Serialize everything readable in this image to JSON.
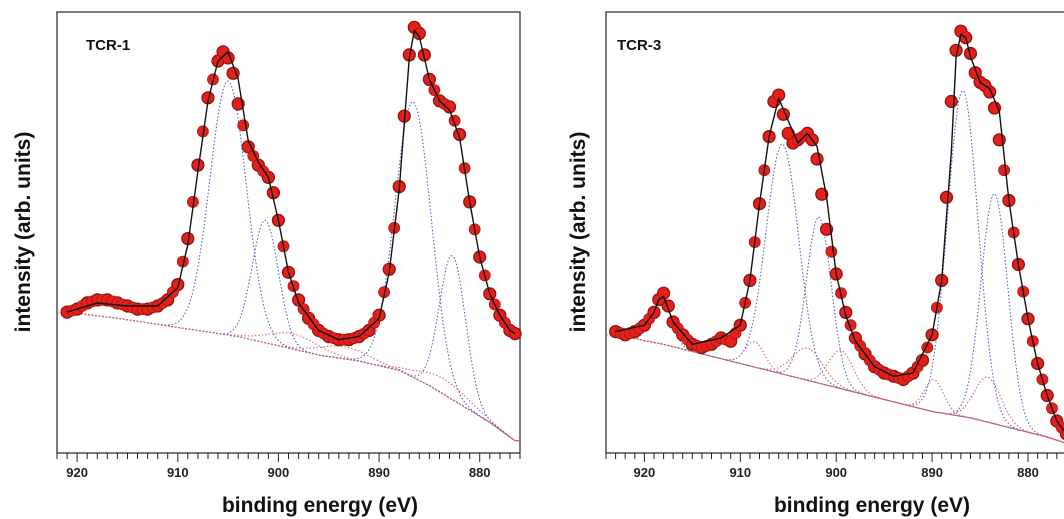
{
  "chart_data": [
    {
      "type": "line",
      "title": "TCR-1",
      "xlabel": "binding energy (eV)",
      "ylabel": "intensity (arb. units)",
      "xlim": [
        922,
        876
      ],
      "x_ticks": [
        920,
        910,
        900,
        890,
        880
      ],
      "series": [
        {
          "role": "measured",
          "style": "red-dots",
          "x": [
            921,
            920,
            919,
            918,
            917,
            916,
            915,
            914,
            913,
            912,
            911,
            910,
            909,
            908,
            907,
            906,
            905.5,
            905,
            904.5,
            904,
            903,
            902,
            901,
            900.5,
            900,
            899,
            898,
            897,
            896,
            895,
            894,
            893,
            892,
            891,
            890,
            889,
            888,
            887.5,
            887,
            886.5,
            886,
            885.5,
            885,
            884,
            883,
            882,
            881,
            880,
            879,
            878,
            877,
            876.5
          ],
          "y": [
            0.04,
            0.05,
            0.07,
            0.08,
            0.08,
            0.07,
            0.06,
            0.05,
            0.05,
            0.06,
            0.08,
            0.13,
            0.28,
            0.52,
            0.74,
            0.86,
            0.89,
            0.87,
            0.82,
            0.72,
            0.58,
            0.52,
            0.48,
            0.43,
            0.34,
            0.17,
            0.08,
            0.02,
            -0.02,
            -0.04,
            -0.05,
            -0.05,
            -0.04,
            -0.02,
            0.03,
            0.18,
            0.45,
            0.68,
            0.88,
            0.97,
            0.95,
            0.88,
            0.8,
            0.73,
            0.71,
            0.62,
            0.4,
            0.22,
            0.1,
            0.03,
            -0.02,
            -0.03
          ]
        },
        {
          "role": "fit-envelope",
          "style": "black-line",
          "x": [
            921,
            918,
            915,
            912,
            910,
            909,
            908,
            907,
            906,
            905,
            904,
            903,
            902,
            901,
            900,
            899,
            898,
            896,
            894,
            892,
            890,
            889,
            888,
            887,
            886.5,
            886,
            885,
            884,
            883,
            882,
            881,
            880,
            879,
            878,
            877,
            876.5
          ],
          "y": [
            0.04,
            0.07,
            0.06,
            0.06,
            0.12,
            0.26,
            0.5,
            0.73,
            0.86,
            0.89,
            0.8,
            0.6,
            0.53,
            0.48,
            0.34,
            0.17,
            0.07,
            -0.02,
            -0.05,
            -0.04,
            0.02,
            0.17,
            0.44,
            0.87,
            0.96,
            0.94,
            0.8,
            0.73,
            0.7,
            0.61,
            0.4,
            0.22,
            0.1,
            0.03,
            -0.02,
            -0.03
          ]
        },
        {
          "role": "component",
          "style": "blue-dotted",
          "center": 905.0,
          "height": 0.83,
          "width": 1.8
        },
        {
          "role": "component",
          "style": "blue-dotted",
          "center": 901.3,
          "height": 0.4,
          "width": 1.3
        },
        {
          "role": "component",
          "style": "blue-dotted",
          "center": 886.6,
          "height": 0.9,
          "width": 1.8
        },
        {
          "role": "component",
          "style": "blue-dotted",
          "center": 882.7,
          "height": 0.47,
          "width": 1.3
        },
        {
          "role": "component",
          "style": "red-dotted",
          "center": 898.5,
          "height": 0.05,
          "width": 2.5
        },
        {
          "role": "component",
          "style": "red-dotted",
          "center": 893.5,
          "height": 0.04,
          "width": 2.5
        },
        {
          "role": "component",
          "style": "red-dotted",
          "center": 883.5,
          "height": 0.05,
          "width": 2.5
        },
        {
          "role": "background",
          "style": "red-dotted-line",
          "x": [
            921,
            916,
            912,
            908,
            904,
            900,
            896,
            892,
            888,
            885,
            882,
            879,
            876.5
          ],
          "y": [
            0.04,
            0.02,
            0.0,
            -0.02,
            -0.04,
            -0.07,
            -0.1,
            -0.12,
            -0.15,
            -0.2,
            -0.26,
            -0.32,
            -0.38
          ]
        }
      ],
      "ylim": [
        -0.42,
        1.02
      ],
      "grid": false,
      "legend": "none"
    },
    {
      "type": "line",
      "title": "TCR-3",
      "xlabel": "binding energy (eV)",
      "ylabel": "intensity (arb. units)",
      "xlim": [
        924,
        875
      ],
      "x_ticks": [
        920,
        910,
        900,
        890,
        880
      ],
      "series": [
        {
          "role": "measured",
          "style": "red-dots",
          "x": [
            923,
            922,
            921,
            920,
            919,
            918.5,
            918,
            917.5,
            917,
            916,
            915,
            914,
            913,
            912,
            911,
            910,
            909,
            908,
            907,
            906.5,
            906,
            905.5,
            905,
            904.5,
            904,
            903,
            902.5,
            902,
            901.5,
            901,
            900,
            899,
            898,
            897,
            896,
            895,
            894,
            893,
            892,
            891,
            890,
            889,
            888.5,
            888,
            887.5,
            887,
            886.5,
            886,
            885.5,
            885,
            884.5,
            884,
            883.5,
            883,
            882,
            881,
            880,
            879,
            878,
            877,
            876
          ],
          "y": [
            0.04,
            0.03,
            0.04,
            0.06,
            0.1,
            0.14,
            0.16,
            0.12,
            0.07,
            0.03,
            0.0,
            -0.01,
            0.0,
            0.02,
            0.01,
            0.06,
            0.2,
            0.44,
            0.65,
            0.76,
            0.78,
            0.72,
            0.66,
            0.63,
            0.64,
            0.66,
            0.64,
            0.58,
            0.47,
            0.36,
            0.22,
            0.1,
            0.02,
            -0.03,
            -0.07,
            -0.09,
            -0.1,
            -0.11,
            -0.09,
            -0.05,
            0.03,
            0.2,
            0.46,
            0.76,
            0.92,
            0.98,
            0.96,
            0.91,
            0.85,
            0.82,
            0.81,
            0.79,
            0.74,
            0.64,
            0.45,
            0.25,
            0.08,
            -0.06,
            -0.16,
            -0.24,
            -0.28
          ]
        },
        {
          "role": "fit-envelope",
          "style": "black-line",
          "x": [
            923,
            920,
            919,
            918.5,
            918,
            917,
            915,
            912,
            910,
            909,
            908,
            907,
            906,
            905,
            904,
            903,
            902,
            901,
            900,
            899,
            898,
            896,
            894,
            892,
            890,
            889,
            888,
            887.5,
            887,
            886.5,
            886,
            885,
            884,
            883,
            882,
            881,
            880,
            879,
            878,
            877,
            876
          ],
          "y": [
            0.04,
            0.06,
            0.1,
            0.14,
            0.15,
            0.07,
            0.0,
            0.02,
            0.06,
            0.2,
            0.44,
            0.65,
            0.77,
            0.7,
            0.63,
            0.66,
            0.62,
            0.46,
            0.22,
            0.09,
            0.01,
            -0.07,
            -0.1,
            -0.09,
            0.03,
            0.2,
            0.6,
            0.9,
            0.97,
            0.96,
            0.9,
            0.82,
            0.8,
            0.73,
            0.45,
            0.25,
            0.08,
            -0.06,
            -0.16,
            -0.24,
            -0.28
          ]
        },
        {
          "role": "component",
          "style": "blue-dotted",
          "center": 905.6,
          "height": 0.72,
          "width": 1.7
        },
        {
          "role": "component",
          "style": "blue-dotted",
          "center": 901.8,
          "height": 0.52,
          "width": 1.3
        },
        {
          "role": "component",
          "style": "blue-dotted",
          "center": 886.8,
          "height": 1.02,
          "width": 1.6
        },
        {
          "role": "component",
          "style": "blue-dotted",
          "center": 883.5,
          "height": 0.72,
          "width": 1.4
        },
        {
          "role": "component",
          "style": "blue-dotted",
          "center": 918.2,
          "height": 0.15,
          "width": 1.0
        },
        {
          "role": "component",
          "style": "red-dotted",
          "center": 908.5,
          "height": 0.08,
          "width": 1.0
        },
        {
          "role": "component",
          "style": "red-dotted",
          "center": 903.0,
          "height": 0.1,
          "width": 1.6
        },
        {
          "role": "component",
          "style": "red-dotted",
          "center": 899.5,
          "height": 0.12,
          "width": 1.3
        },
        {
          "role": "component",
          "style": "red-dotted",
          "center": 889.8,
          "height": 0.1,
          "width": 1.0
        },
        {
          "role": "component",
          "style": "red-dotted",
          "center": 884.2,
          "height": 0.14,
          "width": 1.4
        },
        {
          "role": "background",
          "style": "red-dotted-line",
          "x": [
            923,
            918,
            914,
            910,
            906,
            902,
            898,
            894,
            890,
            886,
            882,
            878,
            876
          ],
          "y": [
            0.03,
            0.0,
            -0.03,
            -0.06,
            -0.09,
            -0.12,
            -0.15,
            -0.18,
            -0.21,
            -0.23,
            -0.26,
            -0.29,
            -0.31
          ]
        }
      ],
      "ylim": [
        -0.34,
        1.04
      ],
      "grid": false,
      "legend": "none"
    }
  ]
}
